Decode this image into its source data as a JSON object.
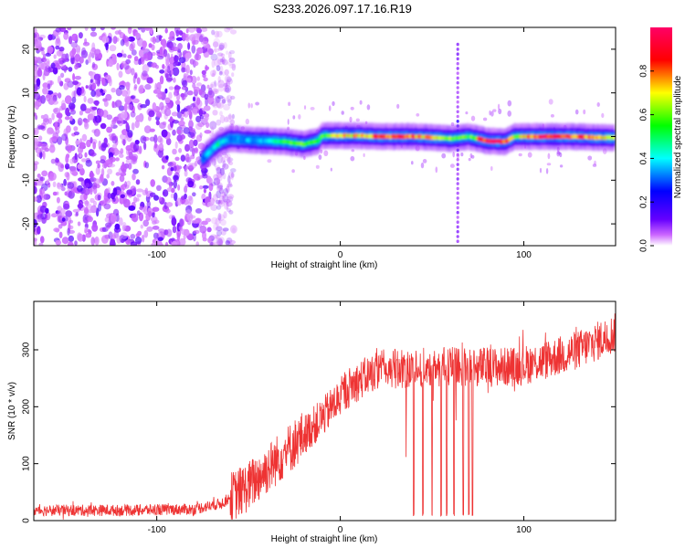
{
  "title": "S233.2026.097.17.16.R19",
  "chart_data": [
    {
      "type": "heatmap",
      "xlabel": "Height of straight line (km)",
      "ylabel": "Frequency (Hz)",
      "xlim": [
        -167,
        150
      ],
      "ylim": [
        -25,
        25
      ],
      "xticks": [
        -100,
        0,
        100
      ],
      "yticks": [
        -20,
        -10,
        0,
        10,
        20
      ],
      "colorbar": {
        "label": "Normalized spectral amplitude",
        "range": [
          0,
          1
        ],
        "ticks": [
          0.0,
          0.2,
          0.4,
          0.6,
          0.8
        ],
        "colors": [
          "#ffffff",
          "#cc66ff",
          "#6600ff",
          "#0000ff",
          "#00ffff",
          "#00ff00",
          "#ffff00",
          "#ff0000",
          "#ff0066"
        ]
      },
      "noise_region_x": [
        -167,
        -58
      ],
      "line_trace": [
        {
          "x": -75,
          "y": -5,
          "v": 0.3
        },
        {
          "x": -70,
          "y": -3,
          "v": 0.4
        },
        {
          "x": -66,
          "y": -1.5,
          "v": 0.45
        },
        {
          "x": -60,
          "y": -0.5,
          "v": 0.3
        },
        {
          "x": -50,
          "y": -0.8,
          "v": 0.35
        },
        {
          "x": -40,
          "y": -1.0,
          "v": 0.35
        },
        {
          "x": -30,
          "y": -1.2,
          "v": 0.55
        },
        {
          "x": -20,
          "y": -1.8,
          "v": 0.6
        },
        {
          "x": -12,
          "y": -1.0,
          "v": 0.5
        },
        {
          "x": -10,
          "y": 0.2,
          "v": 0.55
        },
        {
          "x": 0,
          "y": 0.2,
          "v": 0.7
        },
        {
          "x": 10,
          "y": 0.2,
          "v": 0.75
        },
        {
          "x": 20,
          "y": 0.0,
          "v": 0.8
        },
        {
          "x": 30,
          "y": 0.0,
          "v": 0.85
        },
        {
          "x": 40,
          "y": 0.0,
          "v": 0.8
        },
        {
          "x": 50,
          "y": -0.2,
          "v": 0.7
        },
        {
          "x": 60,
          "y": -0.5,
          "v": 0.6
        },
        {
          "x": 70,
          "y": 0.0,
          "v": 0.55
        },
        {
          "x": 80,
          "y": -1.0,
          "v": 0.9
        },
        {
          "x": 90,
          "y": -1.2,
          "v": 0.85
        },
        {
          "x": 95,
          "y": 0.0,
          "v": 0.6
        },
        {
          "x": 110,
          "y": 0.0,
          "v": 0.9
        },
        {
          "x": 125,
          "y": 0.0,
          "v": 0.85
        },
        {
          "x": 140,
          "y": -0.2,
          "v": 0.75
        },
        {
          "x": 150,
          "y": -0.3,
          "v": 0.6
        }
      ],
      "vertical_artifact_x": 64
    },
    {
      "type": "line",
      "xlabel": "Height of straight line (km)",
      "ylabel": "SNR (10 * v/v)",
      "xlim": [
        -167,
        150
      ],
      "ylim": [
        0,
        385
      ],
      "xticks": [
        -100,
        0,
        100
      ],
      "yticks": [
        0,
        100,
        200,
        300
      ],
      "color": "#ee3333",
      "trend": {
        "x": [
          -167,
          -120,
          -80,
          -65,
          -50,
          -30,
          -10,
          5,
          20,
          50,
          75,
          95,
          110,
          130,
          150
        ],
        "y": [
          18,
          18,
          20,
          30,
          60,
          120,
          180,
          235,
          265,
          270,
          270,
          270,
          280,
          300,
          330
        ]
      },
      "dropouts_x": [
        40,
        45,
        50,
        55,
        58,
        62,
        67,
        70,
        72
      ]
    }
  ]
}
